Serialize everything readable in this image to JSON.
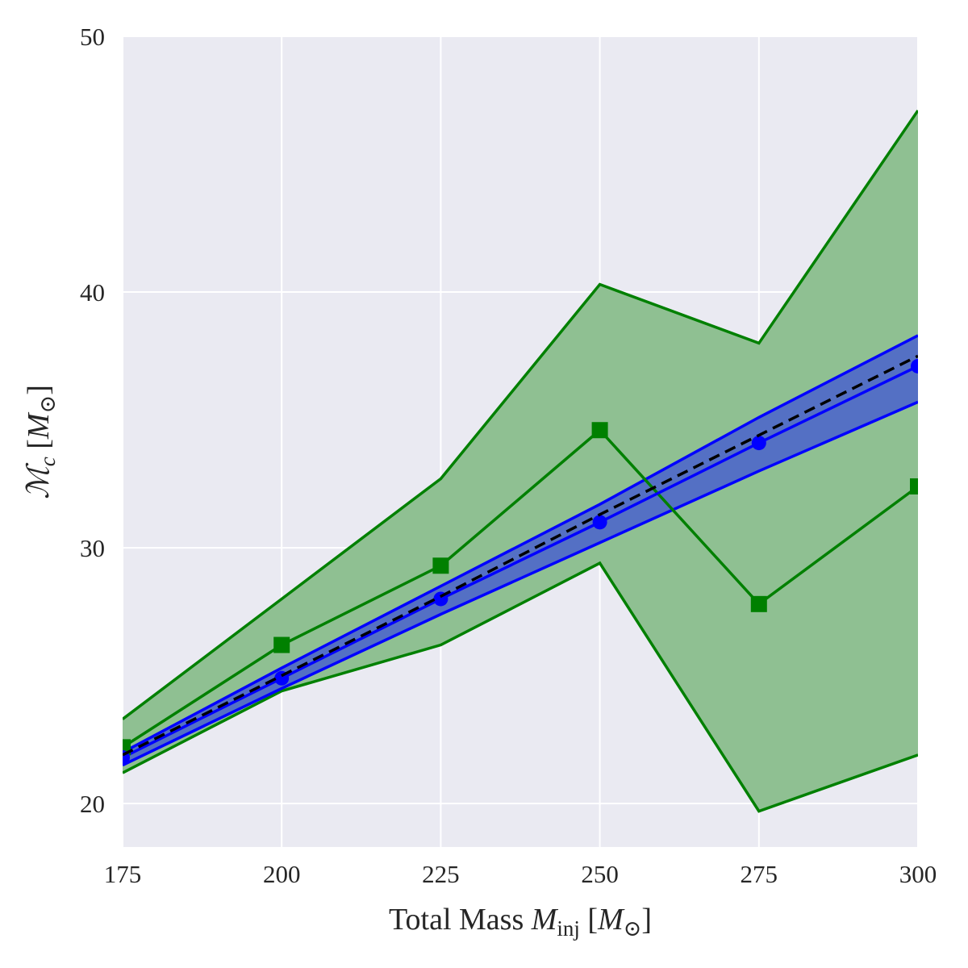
{
  "chart_data": {
    "type": "line",
    "xlabel": {
      "prefix": "Total Mass ",
      "symbol": "M",
      "sub": "inj",
      "unit_open": " [",
      "unit_symbol": "M",
      "unit_sub": "⊙",
      "unit_close": "]"
    },
    "ylabel": {
      "symbol": "ℳ",
      "sub": "c",
      "unit_open": " [",
      "unit_symbol": "M",
      "unit_sub": "⊙",
      "unit_close": "]"
    },
    "xlim": [
      175,
      300
    ],
    "ylim": [
      18.3,
      50
    ],
    "xticks": [
      175,
      200,
      225,
      250,
      275,
      300
    ],
    "yticks": [
      20,
      30,
      40,
      50
    ],
    "grid": true,
    "background": "#eaeaf2",
    "x": [
      175,
      200,
      225,
      250,
      275,
      300
    ],
    "series": [
      {
        "kind": "band",
        "color": "#008000",
        "fill": "#8fc092",
        "upper": [
          23.3,
          28.0,
          32.7,
          40.3,
          38.0,
          47.1
        ],
        "lower": [
          21.2,
          24.4,
          26.2,
          29.4,
          19.7,
          21.9
        ]
      },
      {
        "kind": "band",
        "color": "#0000ff",
        "fill": "#5470c4",
        "upper": [
          22.0,
          25.3,
          28.5,
          31.7,
          35.1,
          38.3
        ],
        "lower": [
          21.5,
          24.5,
          27.4,
          30.2,
          33.0,
          35.7
        ]
      },
      {
        "kind": "line",
        "color": "#008000",
        "marker": "square",
        "values": [
          22.2,
          26.2,
          29.3,
          34.6,
          27.8,
          32.4
        ]
      },
      {
        "kind": "line",
        "color": "#0000ff",
        "marker": "circle",
        "values": [
          21.8,
          24.9,
          28.0,
          31.0,
          34.1,
          37.1
        ]
      },
      {
        "kind": "dashed",
        "color": "#000000",
        "values": [
          21.9,
          25.0,
          28.1,
          31.3,
          34.4,
          37.5
        ]
      }
    ]
  }
}
